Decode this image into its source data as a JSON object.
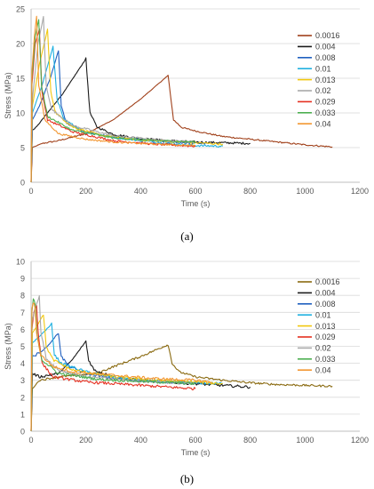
{
  "captions": {
    "a": "(a)",
    "b": "(b)"
  },
  "colors": {
    "0.0016": "#a0401a",
    "0.004": "#1a1a1a",
    "0.008": "#1f5fbf",
    "0.01": "#1fb0e0",
    "0.013": "#f2c80f",
    "0.02": "#a8a8a8",
    "0.029": "#e53020",
    "0.033": "#4caf50",
    "0.04": "#f29630"
  },
  "chart_data": [
    {
      "type": "line",
      "panel": "a",
      "xlabel": "Time (s)",
      "ylabel": "Stress (MPa)",
      "xlim": [
        0,
        1200
      ],
      "ylim": [
        0,
        25
      ],
      "xticks": [
        "0",
        "200",
        "400",
        "600",
        "800",
        "1000",
        "1200"
      ],
      "yticks": [
        "0",
        "5",
        "10",
        "15",
        "20",
        "25"
      ],
      "grid": true,
      "legend_position": "right",
      "series": [
        {
          "name": "0.0016",
          "color": "#a0401a",
          "noise": 0.1,
          "points": [
            [
              0,
              0
            ],
            [
              5,
              5
            ],
            [
              40,
              5.6
            ],
            [
              100,
              6.0
            ],
            [
              200,
              7.0
            ],
            [
              300,
              9.0
            ],
            [
              400,
              12.0
            ],
            [
              500,
              15.4
            ],
            [
              520,
              9.0
            ],
            [
              550,
              7.9
            ],
            [
              600,
              7.4
            ],
            [
              700,
              6.6
            ],
            [
              800,
              6.2
            ],
            [
              900,
              5.8
            ],
            [
              1000,
              5.4
            ],
            [
              1100,
              5.1
            ]
          ]
        },
        {
          "name": "0.004",
          "color": "#1a1a1a",
          "noise": 0.15,
          "points": [
            [
              0,
              0
            ],
            [
              5,
              7.5
            ],
            [
              20,
              8
            ],
            [
              60,
              10
            ],
            [
              120,
              13
            ],
            [
              200,
              17.8
            ],
            [
              215,
              10
            ],
            [
              240,
              8.0
            ],
            [
              300,
              6.9
            ],
            [
              400,
              6.3
            ],
            [
              500,
              6.0
            ],
            [
              600,
              5.8
            ],
            [
              700,
              5.7
            ],
            [
              800,
              5.6
            ]
          ]
        },
        {
          "name": "0.008",
          "color": "#1f5fbf",
          "noise": 0.15,
          "points": [
            [
              0,
              0
            ],
            [
              5,
              9
            ],
            [
              30,
              11
            ],
            [
              70,
              15
            ],
            [
              100,
              19
            ],
            [
              110,
              11
            ],
            [
              130,
              8.5
            ],
            [
              200,
              7.2
            ],
            [
              300,
              6.5
            ],
            [
              400,
              6.1
            ],
            [
              500,
              5.8
            ],
            [
              640,
              5.6
            ]
          ]
        },
        {
          "name": "0.01",
          "color": "#1fb0e0",
          "noise": 0.15,
          "points": [
            [
              0,
              0
            ],
            [
              5,
              10
            ],
            [
              40,
              14
            ],
            [
              80,
              19.5
            ],
            [
              95,
              12
            ],
            [
              120,
              9
            ],
            [
              200,
              7.2
            ],
            [
              300,
              6.5
            ],
            [
              400,
              6.0
            ],
            [
              500,
              5.6
            ],
            [
              600,
              5.3
            ],
            [
              700,
              5.2
            ]
          ]
        },
        {
          "name": "0.013",
          "color": "#f2c80f",
          "noise": 0.15,
          "points": [
            [
              0,
              0
            ],
            [
              5,
              11
            ],
            [
              30,
              17
            ],
            [
              60,
              22
            ],
            [
              72,
              13
            ],
            [
              90,
              10
            ],
            [
              150,
              8
            ],
            [
              250,
              6.8
            ],
            [
              400,
              6.1
            ],
            [
              500,
              5.9
            ],
            [
              600,
              5.7
            ],
            [
              700,
              5.5
            ]
          ]
        },
        {
          "name": "0.02",
          "color": "#a8a8a8",
          "noise": 0.15,
          "points": [
            [
              0,
              0
            ],
            [
              5,
              12
            ],
            [
              25,
              20
            ],
            [
              45,
              23.8
            ],
            [
              55,
              14
            ],
            [
              75,
              10.5
            ],
            [
              150,
              8.2
            ],
            [
              300,
              6.7
            ],
            [
              500,
              6.0
            ],
            [
              600,
              5.8
            ]
          ]
        },
        {
          "name": "0.029",
          "color": "#e53020",
          "noise": 0.15,
          "points": [
            [
              0,
              0
            ],
            [
              3,
              14
            ],
            [
              15,
              20
            ],
            [
              30,
              22
            ],
            [
              40,
              13
            ],
            [
              60,
              9
            ],
            [
              150,
              7.3
            ],
            [
              300,
              6.0
            ],
            [
              450,
              5.5
            ],
            [
              600,
              5.2
            ]
          ]
        },
        {
          "name": "0.033",
          "color": "#4caf50",
          "noise": 0.15,
          "points": [
            [
              0,
              0
            ],
            [
              3,
              15
            ],
            [
              15,
              21
            ],
            [
              28,
              23.5
            ],
            [
              38,
              14
            ],
            [
              60,
              9.5
            ],
            [
              150,
              7.5
            ],
            [
              300,
              6.4
            ],
            [
              450,
              6.0
            ],
            [
              600,
              5.8
            ]
          ]
        },
        {
          "name": "0.04",
          "color": "#f29630",
          "noise": 0.12,
          "points": [
            [
              0,
              0
            ],
            [
              3,
              16
            ],
            [
              12,
              21
            ],
            [
              20,
              24
            ],
            [
              28,
              14
            ],
            [
              50,
              9
            ],
            [
              100,
              7.0
            ],
            [
              200,
              6.2
            ],
            [
              300,
              5.8
            ],
            [
              450,
              5.5
            ],
            [
              600,
              5.3
            ]
          ]
        }
      ]
    },
    {
      "type": "line",
      "panel": "b",
      "xlabel": "Time (s)",
      "ylabel": "Stress (MPa)",
      "xlim": [
        0,
        1200
      ],
      "ylim": [
        0,
        10
      ],
      "xticks": [
        "0",
        "200",
        "400",
        "600",
        "800",
        "1000",
        "1200"
      ],
      "yticks": [
        "0",
        "1",
        "2",
        "3",
        "4",
        "5",
        "6",
        "7",
        "8",
        "9",
        "10"
      ],
      "grid": true,
      "legend_position": "right",
      "series": [
        {
          "name": "0.0016",
          "color": "#8a6a10",
          "noise": 0.06,
          "points": [
            [
              0,
              0
            ],
            [
              5,
              2.5
            ],
            [
              30,
              3.0
            ],
            [
              100,
              3.2
            ],
            [
              200,
              3.35
            ],
            [
              240,
              3.4
            ],
            [
              300,
              3.8
            ],
            [
              400,
              4.4
            ],
            [
              500,
              5.1
            ],
            [
              515,
              4.0
            ],
            [
              540,
              3.5
            ],
            [
              600,
              3.2
            ],
            [
              700,
              3.0
            ],
            [
              800,
              2.85
            ],
            [
              900,
              2.75
            ],
            [
              1000,
              2.7
            ],
            [
              1100,
              2.65
            ]
          ]
        },
        {
          "name": "0.004",
          "color": "#1a1a1a",
          "noise": 0.08,
          "points": [
            [
              0,
              0
            ],
            [
              5,
              3.4
            ],
            [
              30,
              3.2
            ],
            [
              100,
              3.4
            ],
            [
              150,
              4.2
            ],
            [
              200,
              5.3
            ],
            [
              210,
              4.2
            ],
            [
              230,
              3.6
            ],
            [
              300,
              3.2
            ],
            [
              400,
              3.0
            ],
            [
              500,
              2.9
            ],
            [
              600,
              2.8
            ],
            [
              700,
              2.7
            ],
            [
              800,
              2.6
            ]
          ]
        },
        {
          "name": "0.008",
          "color": "#1f5fbf",
          "noise": 0.08,
          "points": [
            [
              0,
              0
            ],
            [
              5,
              4.4
            ],
            [
              30,
              4.6
            ],
            [
              60,
              5.0
            ],
            [
              100,
              5.8
            ],
            [
              110,
              4.4
            ],
            [
              140,
              3.8
            ],
            [
              200,
              3.4
            ],
            [
              300,
              3.1
            ],
            [
              400,
              3.0
            ],
            [
              500,
              2.9
            ],
            [
              640,
              2.8
            ]
          ]
        },
        {
          "name": "0.01",
          "color": "#1fb0e0",
          "noise": 0.08,
          "points": [
            [
              0,
              0
            ],
            [
              5,
              5.2
            ],
            [
              25,
              5.5
            ],
            [
              50,
              5.9
            ],
            [
              75,
              6.3
            ],
            [
              85,
              4.5
            ],
            [
              110,
              4.0
            ],
            [
              200,
              3.5
            ],
            [
              300,
              3.2
            ],
            [
              400,
              3.0
            ],
            [
              500,
              2.9
            ],
            [
              600,
              2.85
            ],
            [
              700,
              2.8
            ]
          ]
        },
        {
          "name": "0.013",
          "color": "#f2c80f",
          "noise": 0.08,
          "points": [
            [
              0,
              0
            ],
            [
              5,
              5.8
            ],
            [
              25,
              6.3
            ],
            [
              45,
              6.9
            ],
            [
              55,
              5.0
            ],
            [
              80,
              4.2
            ],
            [
              150,
              3.6
            ],
            [
              300,
              3.2
            ],
            [
              450,
              3.0
            ],
            [
              600,
              2.9
            ],
            [
              700,
              2.8
            ]
          ]
        },
        {
          "name": "0.029",
          "color": "#e53020",
          "noise": 0.08,
          "points": [
            [
              0,
              0
            ],
            [
              3,
              6.0
            ],
            [
              10,
              7.0
            ],
            [
              20,
              7.4
            ],
            [
              26,
              5.8
            ],
            [
              40,
              4.0
            ],
            [
              80,
              3.2
            ],
            [
              200,
              2.9
            ],
            [
              400,
              2.7
            ],
            [
              500,
              2.6
            ],
            [
              600,
              2.5
            ]
          ]
        },
        {
          "name": "0.02",
          "color": "#a8a8a8",
          "noise": 0.08,
          "points": [
            [
              0,
              0
            ],
            [
              4,
              6.5
            ],
            [
              15,
              7.3
            ],
            [
              30,
              7.9
            ],
            [
              36,
              5.8
            ],
            [
              55,
              4.3
            ],
            [
              100,
              3.6
            ],
            [
              200,
              3.2
            ],
            [
              400,
              2.95
            ],
            [
              600,
              2.8
            ]
          ]
        },
        {
          "name": "0.033",
          "color": "#4caf50",
          "noise": 0.08,
          "points": [
            [
              0,
              0
            ],
            [
              3,
              7.0
            ],
            [
              8,
              7.8
            ],
            [
              15,
              7.5
            ],
            [
              22,
              5.6
            ],
            [
              40,
              4.2
            ],
            [
              100,
              3.4
            ],
            [
              250,
              3.05
            ],
            [
              450,
              2.9
            ],
            [
              600,
              2.8
            ]
          ]
        },
        {
          "name": "0.04",
          "color": "#f29630",
          "noise": 0.08,
          "points": [
            [
              0,
              0
            ],
            [
              3,
              7.2
            ],
            [
              8,
              7.6
            ],
            [
              14,
              7.3
            ],
            [
              20,
              5.8
            ],
            [
              35,
              4.5
            ],
            [
              80,
              3.8
            ],
            [
              150,
              3.5
            ],
            [
              300,
              3.3
            ],
            [
              450,
              3.1
            ],
            [
              600,
              3.0
            ],
            [
              660,
              2.9
            ]
          ]
        }
      ]
    }
  ]
}
